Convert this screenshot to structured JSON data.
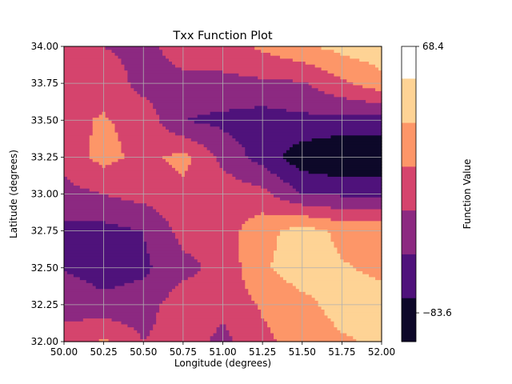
{
  "chart_data": {
    "type": "contour",
    "title": "Txx Function Plot",
    "xlabel": "Longitude (degrees)",
    "ylabel": "Latitude (degrees)",
    "colorbar_label": "Function Value",
    "xlim": [
      50.0,
      52.0
    ],
    "ylim": [
      32.0,
      34.0
    ],
    "x_ticks": [
      "50.00",
      "50.25",
      "50.50",
      "50.75",
      "51.00",
      "51.25",
      "51.50",
      "51.75",
      "52.00"
    ],
    "y_ticks": [
      "32.00",
      "32.25",
      "32.50",
      "32.75",
      "33.00",
      "33.25",
      "33.50",
      "33.75",
      "34.00"
    ],
    "grid": true,
    "colormap": "magma",
    "colorbar_ticks": [
      "68.4",
      "−83.6"
    ],
    "level_colors": [
      "#0d0829",
      "#4f127b",
      "#8c2981",
      "#d5446d",
      "#fd9668",
      "#fed395"
    ],
    "field": [
      [
        -16.6,
        4.3,
        -25.0,
        -10.0,
        -33.4,
        -5.0,
        8.3,
        21.0,
        31.0
      ],
      [
        -33.0,
        -42.0,
        -37.0,
        -8.4,
        -16.6,
        2.5,
        16.6,
        36.0,
        35.0
      ],
      [
        -51.0,
        -62.0,
        -55.0,
        -33.0,
        -16.6,
        21.0,
        40.0,
        27.0,
        20.0
      ],
      [
        -58.0,
        -58.0,
        -50.0,
        -16.6,
        -12.0,
        16.0,
        37.0,
        19.0,
        20.0
      ],
      [
        -33.0,
        -25.0,
        -16.6,
        -8.4,
        -8.4,
        -16.6,
        -50.0,
        -53.0,
        -58.0
      ],
      [
        -16.6,
        8.4,
        -8.4,
        8.4,
        -33.0,
        -60.0,
        -90.0,
        -100.0,
        -95.0
      ],
      [
        -5.0,
        2.0,
        -8.4,
        -50.0,
        -56.0,
        -62.0,
        -56.0,
        -58.0,
        -60.0
      ],
      [
        -8.4,
        -7.0,
        -35.0,
        -33.0,
        -33.0,
        -30.0,
        -28.0,
        -6.0,
        15.0
      ],
      [
        -16.6,
        -25.0,
        -33.4,
        -12.0,
        -8.4,
        4.3,
        20.0,
        33.0,
        42.0
      ]
    ],
    "levels": [
      -100.0,
      -75.0,
      -50.0,
      -25.0,
      0.0,
      25.0,
      50.0
    ]
  }
}
